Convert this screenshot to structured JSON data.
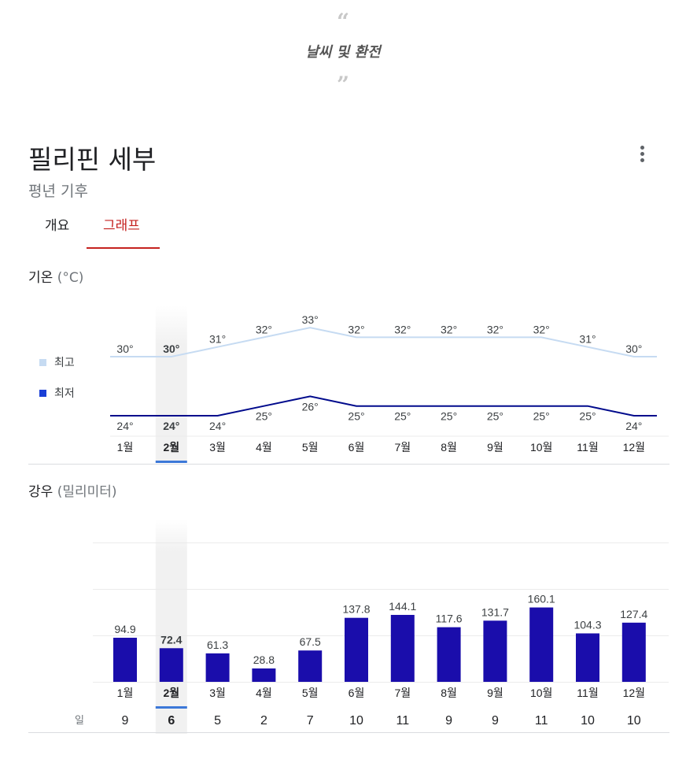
{
  "header": {
    "open_quote": "“",
    "caption": "날씨 및 환전",
    "close_quote": "”"
  },
  "place": {
    "title": "필리핀 세부",
    "subtitle": "평년 기후"
  },
  "menu": {
    "icon": "more-vert-icon"
  },
  "tabs": [
    {
      "label": "개요",
      "active": false
    },
    {
      "label": "그래프",
      "active": true
    }
  ],
  "colors": {
    "high": "#c6dbf2",
    "low": "#000a8c",
    "bar": "#1a0dab",
    "accent": "#c5221f",
    "selected_underline": "#3c78d8",
    "highlight_band": "#f1f1f1"
  },
  "temperature": {
    "title": "기온",
    "unit": "(°C)",
    "legend": {
      "high": "최고",
      "low": "최저"
    }
  },
  "precipitation": {
    "title": "강우",
    "unit": "(밀리미터)",
    "days_label": "일"
  },
  "selected_month_index": 1,
  "chart_data": [
    {
      "type": "line",
      "title": "기온 (°C)",
      "categories": [
        "1월",
        "2월",
        "3월",
        "4월",
        "5월",
        "6월",
        "7월",
        "8월",
        "9월",
        "10월",
        "11월",
        "12월"
      ],
      "series": [
        {
          "name": "최고",
          "values": [
            30,
            30,
            31,
            32,
            33,
            32,
            32,
            32,
            32,
            32,
            31,
            30
          ]
        },
        {
          "name": "최저",
          "values": [
            24,
            24,
            24,
            25,
            26,
            25,
            25,
            25,
            25,
            25,
            25,
            24
          ]
        }
      ],
      "value_suffix": "°",
      "legend": "left"
    },
    {
      "type": "bar",
      "title": "강우 (밀리미터)",
      "categories": [
        "1월",
        "2월",
        "3월",
        "4월",
        "5월",
        "6월",
        "7월",
        "8월",
        "9월",
        "10월",
        "11월",
        "12월"
      ],
      "values": [
        94.9,
        72.4,
        61.3,
        28.8,
        67.5,
        137.8,
        144.1,
        117.6,
        131.7,
        160.1,
        104.3,
        127.4
      ],
      "days_label": "일",
      "days": [
        9,
        6,
        5,
        2,
        7,
        10,
        11,
        9,
        9,
        11,
        10,
        10
      ],
      "grid": true
    }
  ]
}
